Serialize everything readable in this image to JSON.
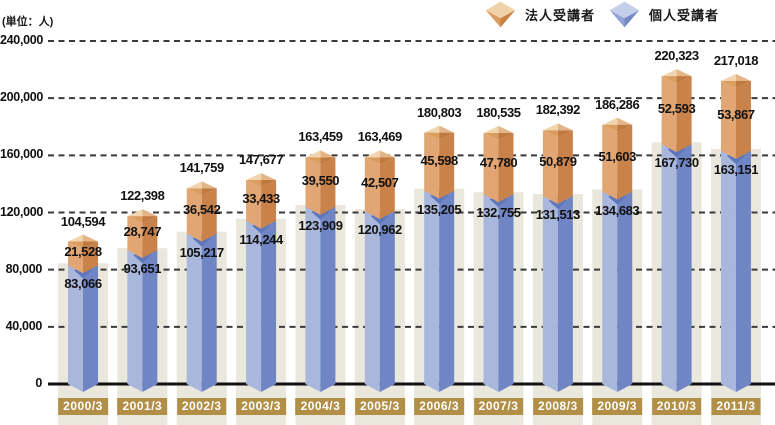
{
  "unit_label": "(単位：人)",
  "legend": [
    {
      "label": "法人受講者",
      "icon": "cube-icon-corporate",
      "colors": {
        "top": "#f0d2a8",
        "left": "#db9c60",
        "right": "#c98243"
      }
    },
    {
      "label": "個人受講者",
      "icon": "cube-icon-individual",
      "colors": {
        "top": "#c6cfea",
        "left": "#92a4d5",
        "right": "#7589c7"
      }
    }
  ],
  "chart_data": {
    "type": "bar",
    "stacked": true,
    "title": "",
    "ylabel": "(単位：人)",
    "xlabel": "",
    "ylim": [
      0,
      240000
    ],
    "ytick_interval": 40000,
    "yticks": [
      "240,000",
      "200,000",
      "160,000",
      "120,000",
      "80,000",
      "40,000",
      "0"
    ],
    "grid": "dashed-horizontal",
    "legend_position": "top-right",
    "categories": [
      "2000/3",
      "2001/3",
      "2002/3",
      "2003/3",
      "2004/3",
      "2005/3",
      "2006/3",
      "2007/3",
      "2008/3",
      "2009/3",
      "2010/3",
      "2011/3"
    ],
    "series": [
      {
        "name": "法人受講者",
        "values": [
          21528,
          28747,
          36542,
          33433,
          39550,
          42507,
          45598,
          47780,
          50879,
          51603,
          52593,
          53867
        ]
      },
      {
        "name": "個人受講者",
        "values": [
          83066,
          93651,
          105217,
          114244,
          123909,
          120962,
          135205,
          132755,
          131513,
          134683,
          167730,
          163151
        ]
      }
    ],
    "totals": [
      104594,
      122398,
      141759,
      147677,
      163459,
      163469,
      180803,
      180535,
      182392,
      186286,
      220323,
      217018
    ]
  },
  "colors": {
    "corporate_light": "#e2a674",
    "corporate_dark": "#c9824a",
    "cap_nw": "#f1d5ae",
    "cap_ne": "#e4b687",
    "cap_sw": "#db9c60",
    "cap_se": "#c07a3f",
    "individual_light": "#aab7dd",
    "individual_dark": "#7086c4",
    "individual_wedge": "#5d76bc",
    "bar_background": "#eae8dc",
    "gridline": "#3a3a3a",
    "axis": "#111111",
    "label_text": "#111111",
    "badge_background": "#b18f46",
    "badge_text": "#ffffff"
  }
}
